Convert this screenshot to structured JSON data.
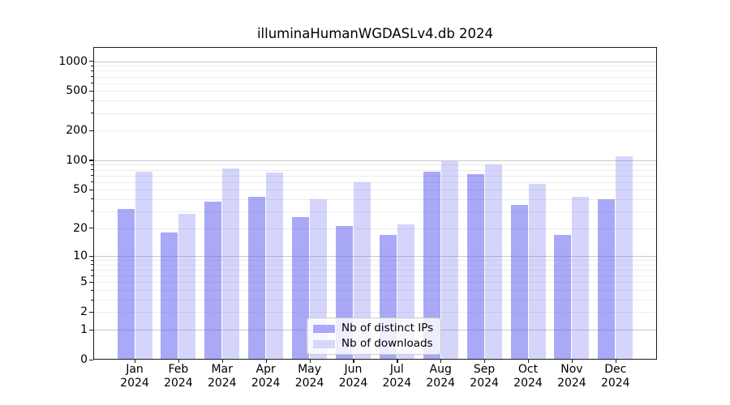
{
  "chart_data": {
    "type": "bar",
    "title": "illuminaHumanWGDASLv4.db 2024",
    "categories": [
      "Jan 2024",
      "Feb 2024",
      "Mar 2024",
      "Apr 2024",
      "May 2024",
      "Jun 2024",
      "Jul 2024",
      "Aug 2024",
      "Sep 2024",
      "Oct 2024",
      "Nov 2024",
      "Dec 2024"
    ],
    "series": [
      {
        "name": "Nb of distinct IPs",
        "values": [
          32,
          18,
          38,
          42,
          26,
          21,
          17,
          77,
          72,
          35,
          17,
          40
        ]
      },
      {
        "name": "Nb of downloads",
        "values": [
          77,
          28,
          83,
          75,
          40,
          60,
          22,
          98,
          91,
          58,
          42,
          110
        ]
      }
    ],
    "xlabel": "",
    "ylabel": "",
    "yscale": "log10(value+1)",
    "ylim": [
      0,
      1440
    ],
    "yticks": [
      0,
      1,
      2,
      5,
      10,
      20,
      50,
      100,
      200,
      500,
      1000
    ],
    "y_major_gridlines": [
      1,
      10,
      100,
      1000
    ],
    "y_minor_gridlines": [
      2,
      3,
      4,
      5,
      6,
      7,
      8,
      9,
      20,
      30,
      40,
      50,
      60,
      70,
      80,
      90,
      200,
      300,
      400,
      500,
      600,
      700,
      800,
      900
    ],
    "grid": "on",
    "legend_position": "lower center"
  },
  "colors": {
    "ips_bar": "rgba(99,99,240,0.55)",
    "downloads_bar": "rgba(99,99,240,0.27)",
    "ips_legend": "#a9a9f7",
    "downloads_legend": "#d7d7fb",
    "grid_major": "#c8c8c8",
    "grid_minor": "#ececec",
    "axis": "#1a1a1a",
    "background": "#ffffff"
  }
}
